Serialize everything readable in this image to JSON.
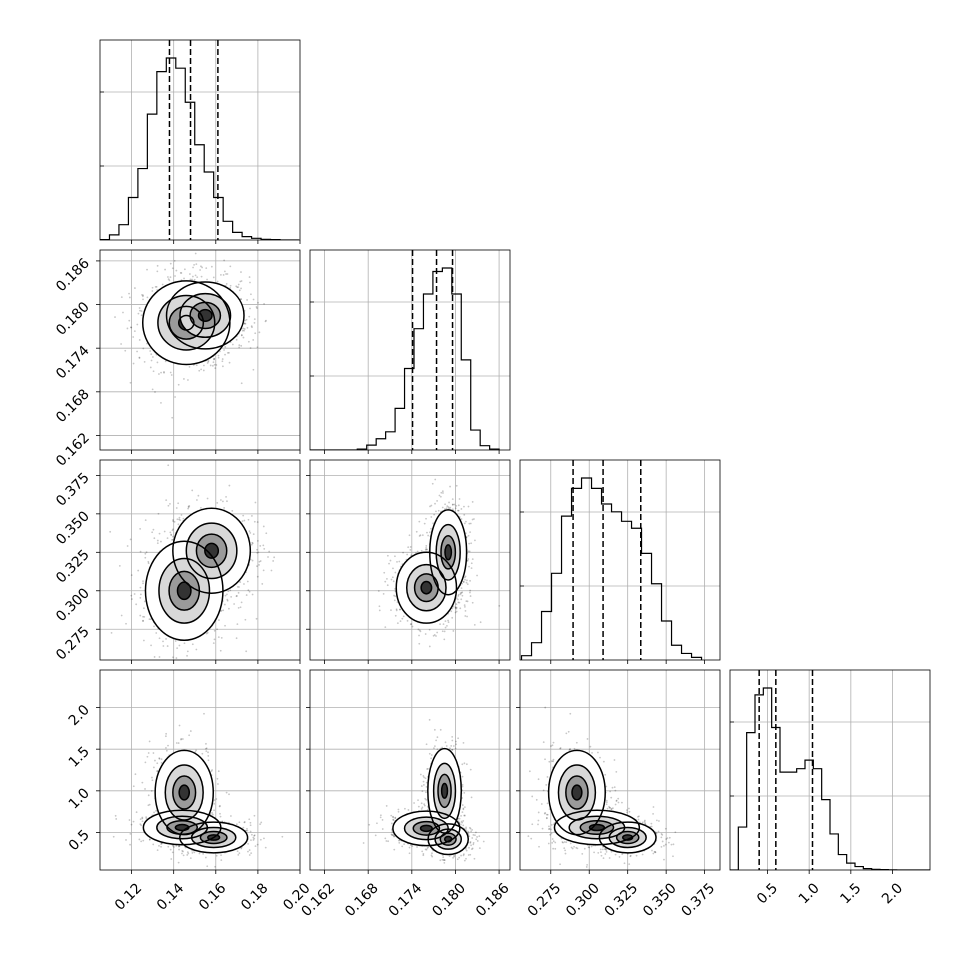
{
  "chart_data": {
    "type": "corner",
    "n_params": 4,
    "grid": true,
    "params": [
      {
        "index": 0,
        "range": [
          0.105,
          0.2
        ],
        "ticks": [
          0.12,
          0.14,
          0.16,
          0.18,
          0.2
        ],
        "tick_labels": [
          "0.12",
          "0.14",
          "0.16",
          "0.18",
          "0.20"
        ],
        "quantiles": [
          0.138,
          0.148,
          0.161
        ],
        "hist": {
          "bins": [
            0.105,
            0.1095,
            0.114,
            0.1185,
            0.123,
            0.1275,
            0.132,
            0.1365,
            0.141,
            0.1455,
            0.15,
            0.1545,
            0.159,
            0.1635,
            0.168,
            0.1725,
            0.177,
            0.1815,
            0.186,
            0.1905,
            0.195,
            0.1995
          ],
          "counts": [
            2,
            30,
            90,
            250,
            420,
            740,
            990,
            1070,
            1010,
            810,
            560,
            400,
            250,
            110,
            45,
            20,
            10,
            4,
            2,
            0,
            0
          ]
        }
      },
      {
        "index": 1,
        "range": [
          0.16,
          0.1875
        ],
        "ticks": [
          0.162,
          0.168,
          0.174,
          0.18,
          0.186
        ],
        "tick_labels": [
          "0.162",
          "0.168",
          "0.174",
          "0.180",
          "0.186"
        ],
        "quantiles": [
          0.1741,
          0.1774,
          0.1796
        ],
        "hist": {
          "bins": [
            0.16,
            0.1613,
            0.1626,
            0.1639,
            0.1652,
            0.1665,
            0.1678,
            0.1691,
            0.1704,
            0.1717,
            0.173,
            0.1743,
            0.1756,
            0.1769,
            0.1782,
            0.1795,
            0.1808,
            0.1821,
            0.1834,
            0.1847,
            0.186
          ],
          "counts": [
            0,
            0,
            0,
            0,
            0,
            5,
            28,
            65,
            105,
            240,
            470,
            700,
            900,
            1030,
            1050,
            900,
            520,
            115,
            25,
            5
          ]
        }
      },
      {
        "index": 2,
        "range": [
          0.255,
          0.385
        ],
        "ticks": [
          0.275,
          0.3,
          0.325,
          0.35,
          0.375
        ],
        "tick_labels": [
          "0.275",
          "0.300",
          "0.325",
          "0.350",
          "0.375"
        ],
        "quantiles": [
          0.2895,
          0.309,
          0.3335
        ],
        "hist": {
          "bins": [
            0.256,
            0.2625,
            0.269,
            0.2755,
            0.282,
            0.2885,
            0.295,
            0.3015,
            0.308,
            0.3145,
            0.321,
            0.3275,
            0.334,
            0.3405,
            0.347,
            0.3535,
            0.36,
            0.3665,
            0.373
          ],
          "counts": [
            25,
            100,
            280,
            500,
            830,
            990,
            1050,
            990,
            900,
            855,
            800,
            760,
            615,
            440,
            225,
            85,
            38,
            15
          ]
        }
      },
      {
        "index": 3,
        "range": [
          0.05,
          2.45
        ],
        "ticks": [
          0.5,
          1.0,
          1.5,
          2.0
        ],
        "tick_labels": [
          "0.5",
          "1.0",
          "1.5",
          "2.0"
        ],
        "quantiles": [
          0.4,
          0.6,
          1.04
        ],
        "hist": {
          "bins": [
            0.05,
            0.15,
            0.25,
            0.35,
            0.45,
            0.55,
            0.65,
            0.75,
            0.85,
            0.95,
            1.05,
            1.15,
            1.25,
            1.35,
            1.45,
            1.55,
            1.65,
            1.75,
            1.85,
            1.95,
            2.05,
            2.15,
            2.25,
            2.35,
            2.45
          ],
          "counts": [
            0,
            250,
            800,
            1020,
            1060,
            830,
            570,
            570,
            590,
            640,
            590,
            410,
            210,
            90,
            40,
            20,
            8,
            4,
            2,
            1,
            0,
            0,
            0,
            0
          ]
        }
      }
    ],
    "pairs": [
      {
        "x": 0,
        "y": 1,
        "mode_centers": [
          [
            0.146,
            0.1775
          ],
          [
            0.155,
            0.1785
          ]
        ],
        "spread": [
          [
            0.009,
            0.0025
          ],
          [
            0.008,
            0.002
          ]
        ]
      },
      {
        "x": 0,
        "y": 2,
        "mode_centers": [
          [
            0.145,
            0.3
          ],
          [
            0.158,
            0.326
          ]
        ],
        "spread": [
          [
            0.008,
            0.014
          ],
          [
            0.008,
            0.012
          ]
        ]
      },
      {
        "x": 1,
        "y": 2,
        "mode_centers": [
          [
            0.176,
            0.302
          ],
          [
            0.179,
            0.325
          ]
        ],
        "spread": [
          [
            0.0018,
            0.01
          ],
          [
            0.0011,
            0.012
          ]
        ]
      },
      {
        "x": 0,
        "y": 3,
        "mode_centers": [
          [
            0.144,
            0.56
          ],
          [
            0.159,
            0.44
          ],
          [
            0.145,
            0.98
          ]
        ],
        "spread": [
          [
            0.008,
            0.09
          ],
          [
            0.007,
            0.08
          ],
          [
            0.006,
            0.22
          ]
        ]
      },
      {
        "x": 1,
        "y": 3,
        "mode_centers": [
          [
            0.176,
            0.55
          ],
          [
            0.179,
            0.42
          ],
          [
            0.1785,
            1.0
          ]
        ],
        "spread": [
          [
            0.002,
            0.09
          ],
          [
            0.0012,
            0.08
          ],
          [
            0.001,
            0.22
          ]
        ]
      },
      {
        "x": 2,
        "y": 3,
        "mode_centers": [
          [
            0.305,
            0.56
          ],
          [
            0.325,
            0.44
          ],
          [
            0.292,
            0.98
          ]
        ],
        "spread": [
          [
            0.012,
            0.09
          ],
          [
            0.008,
            0.08
          ],
          [
            0.008,
            0.22
          ]
        ]
      }
    ]
  }
}
